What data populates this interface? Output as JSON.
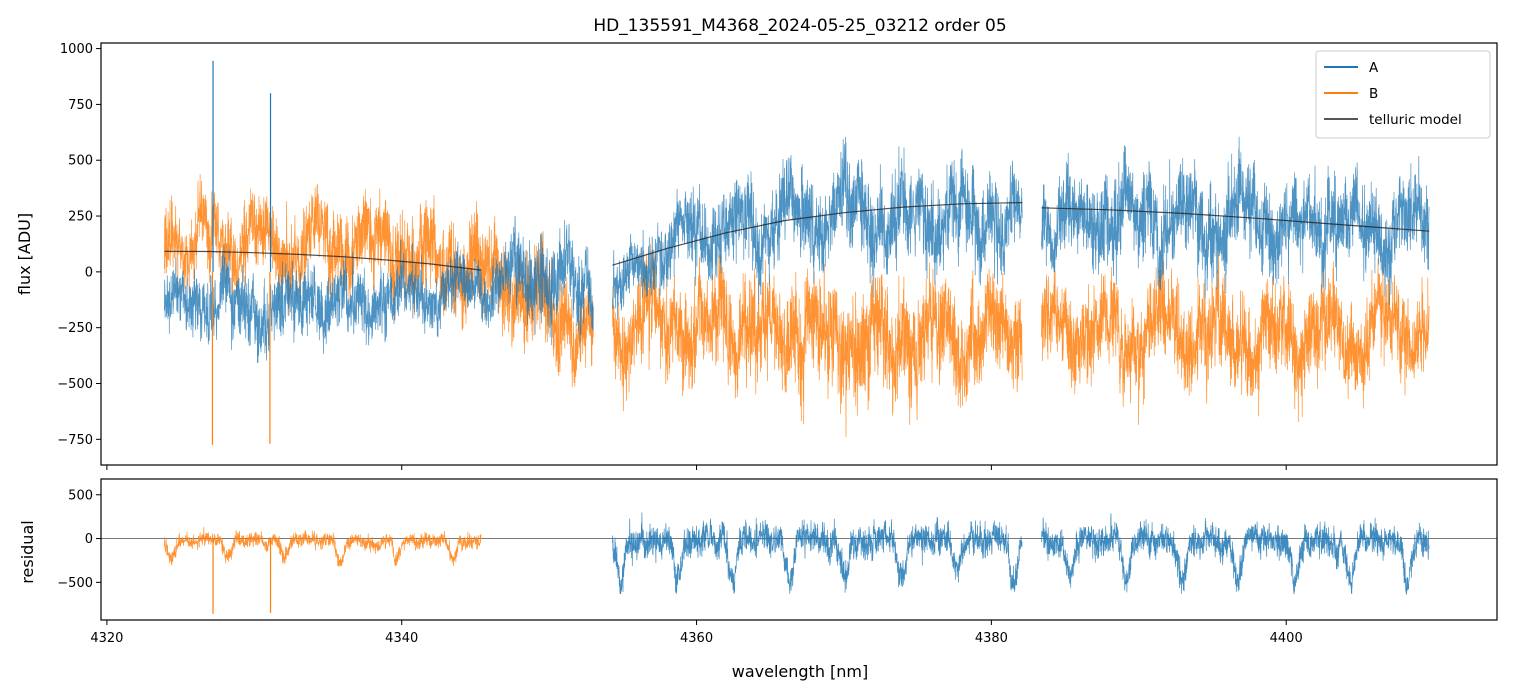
{
  "chart_data": [
    {
      "type": "line",
      "title": "HD_135591_M4368_2024-05-25_03212  order 05",
      "xlabel": "",
      "ylabel": "flux [ADU]",
      "xlim": [
        4319.6,
        4414.3
      ],
      "ylim": [
        -865,
        1025
      ],
      "x_ticks": [
        4320,
        4340,
        4360,
        4380,
        4400
      ],
      "x_tick_labels_shown": false,
      "y_ticks": [
        -750,
        -500,
        -250,
        0,
        250,
        500,
        750,
        1000
      ],
      "y_tick_labels": [
        "−750",
        "−500",
        "−250",
        "0",
        "250",
        "500",
        "750",
        "1000"
      ],
      "grid": false,
      "legend_placement": "top-right",
      "segments_nm": [
        [
          4323.9,
          4345.4
        ],
        [
          4345.4,
          4353.0
        ],
        [
          4354.3,
          4382.1
        ],
        [
          4383.4,
          4409.7
        ]
      ],
      "spikes": [
        {
          "x": 4327.2,
          "A": 945,
          "B": -775
        },
        {
          "x": 4331.1,
          "A": 800,
          "B": -770
        }
      ],
      "series": [
        {
          "name": "A",
          "color": "#1f77b4",
          "style": "noisy spectrum",
          "envelope": {
            "x": [
              4324,
              4330,
              4340,
              4345,
              4350,
              4353,
              4355,
              4360,
              4370,
              4380,
              4382,
              4384,
              4390,
              4400,
              4409.7
            ],
            "mean": [
              -150,
              -160,
              -120,
              -60,
              0,
              -120,
              -50,
              200,
              250,
              260,
              220,
              200,
              240,
              230,
              180
            ],
            "low": [
              -320,
              -340,
              -300,
              -280,
              -400,
              -360,
              -200,
              -150,
              -200,
              -250,
              -200,
              -200,
              -250,
              -250,
              -200
            ],
            "high": [
              150,
              350,
              250,
              250,
              420,
              300,
              300,
              550,
              580,
              590,
              450,
              450,
              600,
              520,
              480
            ]
          }
        },
        {
          "name": "B",
          "color": "#ff7f0e",
          "style": "noisy spectrum",
          "envelope": {
            "x": [
              4324,
              4330,
              4340,
              4345,
              4350,
              4353,
              4355,
              4360,
              4370,
              4380,
              4382,
              4384,
              4390,
              4400,
              4409.7
            ],
            "mean": [
              150,
              130,
              100,
              20,
              -150,
              -250,
              -200,
              -250,
              -280,
              -300,
              -300,
              -250,
              -280,
              -280,
              -250
            ],
            "low": [
              -300,
              -200,
              -350,
              -400,
              -450,
              -450,
              -550,
              -600,
              -650,
              -650,
              -550,
              -550,
              -600,
              -600,
              -550
            ],
            "high": [
              400,
              450,
              450,
              400,
              450,
              300,
              250,
              250,
              350,
              250,
              150,
              200,
              250,
              250,
              200
            ]
          }
        },
        {
          "name": "telluric model",
          "color": "#555555",
          "style": "smooth model",
          "points": [
            [
              [
                4323.9,
                92
              ],
              [
                4327,
                91
              ],
              [
                4330,
                86
              ],
              [
                4333,
                78
              ],
              [
                4336,
                68
              ],
              [
                4339,
                53
              ],
              [
                4342,
                35
              ],
              [
                4345.4,
                8
              ]
            ],
            [
              [
                4354.3,
                30
              ],
              [
                4358,
                105
              ],
              [
                4362,
                175
              ],
              [
                4366,
                230
              ],
              [
                4370,
                265
              ],
              [
                4374,
                290
              ],
              [
                4378,
                305
              ],
              [
                4382.1,
                310
              ]
            ],
            [
              [
                4383.4,
                287
              ],
              [
                4388,
                278
              ],
              [
                4393,
                262
              ],
              [
                4398,
                240
              ],
              [
                4403,
                215
              ],
              [
                4409.7,
                182
              ]
            ]
          ]
        }
      ]
    },
    {
      "type": "line",
      "title": "",
      "xlabel": "wavelength [nm]",
      "ylabel": "residual",
      "xlim": [
        4319.6,
        4414.3
      ],
      "ylim": [
        -930,
        680
      ],
      "x_ticks": [
        4320,
        4340,
        4360,
        4380,
        4400
      ],
      "x_tick_labels": [
        "4320",
        "4340",
        "4360",
        "4380",
        "4400"
      ],
      "y_ticks": [
        -500,
        0,
        500
      ],
      "y_tick_labels": [
        "−500",
        "0",
        "500"
      ],
      "grid": false,
      "zero_line": true,
      "series": [
        {
          "name": "",
          "color": "#ff7f0e",
          "style": "residual",
          "range_nm": [
            4323.9,
            4345.4
          ],
          "envelope": {
            "low": -300,
            "high": 250
          },
          "dips": [
            {
              "x": 4327.2,
              "y": -860
            },
            {
              "x": 4331.1,
              "y": -850
            }
          ]
        },
        {
          "name": "",
          "color": "#1f77b4",
          "style": "residual",
          "range_nm": [
            4354.3,
            4409.7
          ],
          "gap_nm": [
            4382.1,
            4383.4
          ],
          "envelope": {
            "low": -600,
            "high": 550
          }
        }
      ]
    }
  ]
}
